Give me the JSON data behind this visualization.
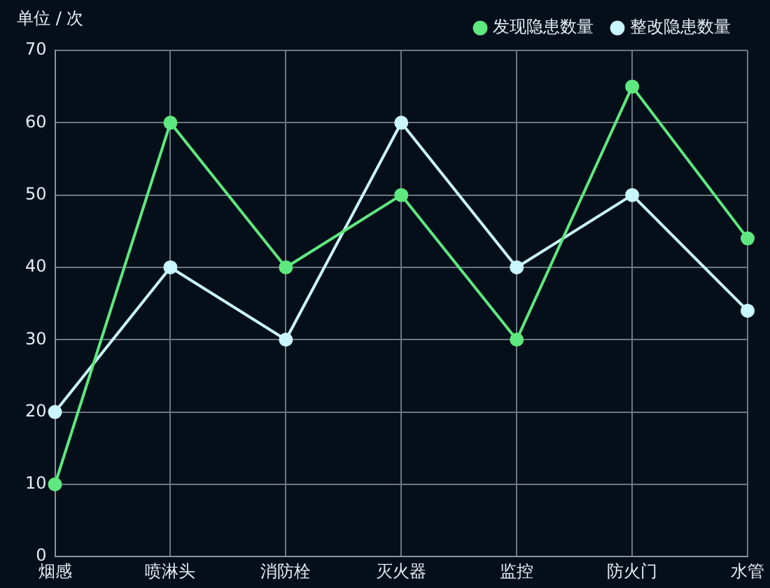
{
  "chart_data": {
    "type": "line",
    "ylabel": "单位 / 次",
    "categories": [
      "烟感",
      "喷淋头",
      "消防栓",
      "灭火器",
      "监控",
      "防火门",
      "水管"
    ],
    "series": [
      {
        "name": "发现隐患数量",
        "color": "#5ee87f",
        "values": [
          10,
          60,
          40,
          50,
          30,
          65,
          44
        ]
      },
      {
        "name": "整改隐患数量",
        "color": "#c9f6ff",
        "values": [
          20,
          40,
          30,
          60,
          40,
          50,
          34
        ]
      }
    ],
    "ylim": [
      0,
      70
    ],
    "yticks": [
      0,
      10,
      20,
      30,
      40,
      50,
      60,
      70
    ],
    "grid": true,
    "legend": "top right",
    "marker": "circle",
    "line_style": "solid"
  }
}
